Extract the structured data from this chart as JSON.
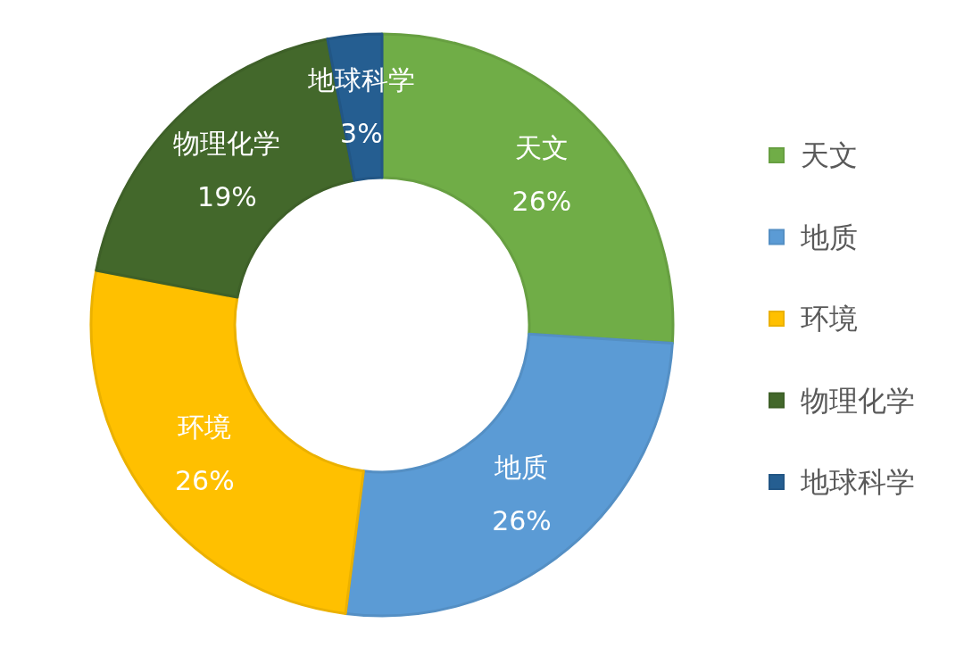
{
  "chart_data": {
    "type": "donut",
    "categories": [
      "天文",
      "地质",
      "环境",
      "物理化学",
      "地球科学"
    ],
    "values": [
      26,
      26,
      26,
      19,
      3
    ],
    "colors": [
      "#70ad47",
      "#5b9bd5",
      "#ffc000",
      "#43682b",
      "#255e91"
    ],
    "value_labels": [
      "26%",
      "26%",
      "26%",
      "19%",
      "3%"
    ],
    "legend": "right"
  }
}
